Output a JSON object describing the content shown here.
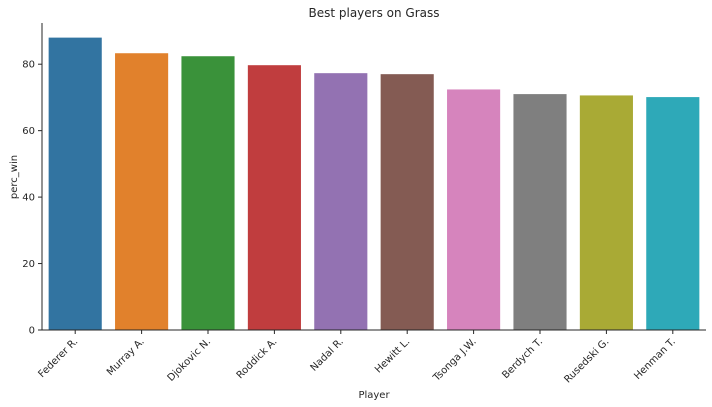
{
  "chart_data": {
    "type": "bar",
    "title": "Best players on Grass",
    "xlabel": "Player",
    "ylabel": "perc_win",
    "categories": [
      "Federer R.",
      "Murray A.",
      "Djokovic N.",
      "Roddick A.",
      "Nadal R.",
      "Hewitt L.",
      "Tsonga J.W.",
      "Berdych T.",
      "Rusedski G.",
      "Henman T."
    ],
    "values": [
      88.0,
      83.3,
      82.4,
      79.7,
      77.3,
      77.0,
      72.4,
      71.0,
      70.6,
      70.1
    ],
    "colors": [
      "#3274a1",
      "#e1812c",
      "#3a923a",
      "#c03d3e",
      "#9372b2",
      "#845b53",
      "#d684bd",
      "#7f7f7f",
      "#a9aa35",
      "#2ea9b8"
    ],
    "ylim": [
      0,
      92.4
    ],
    "yticks": [
      0,
      20,
      40,
      60,
      80
    ],
    "grid": false,
    "legend": "none"
  }
}
